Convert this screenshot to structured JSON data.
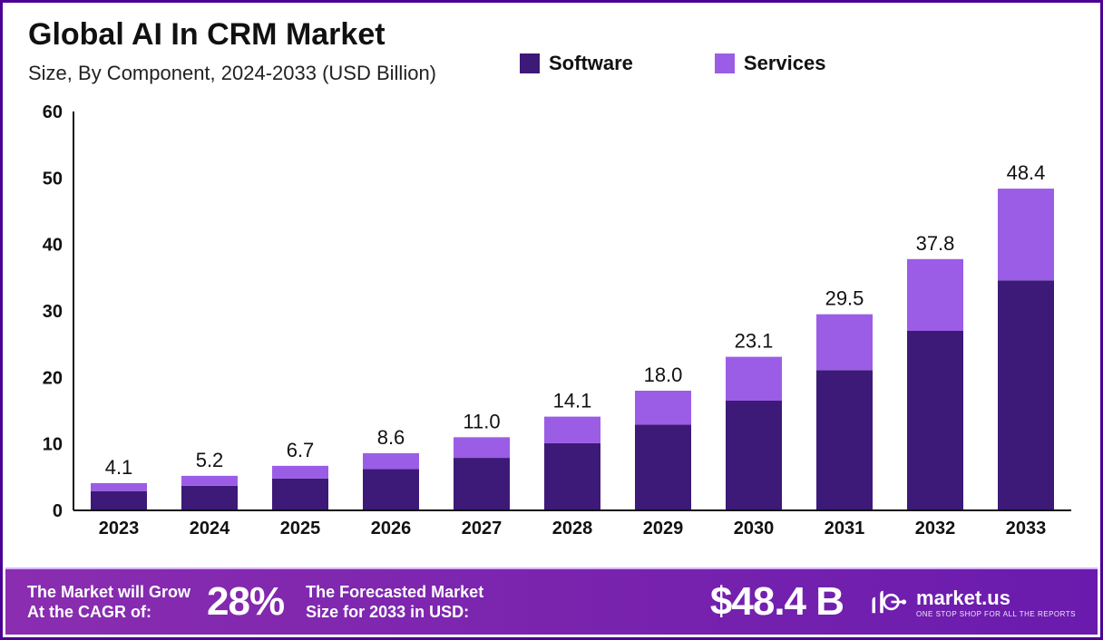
{
  "header": {
    "title": "Global AI In CRM Market",
    "subtitle": "Size, By Component, 2024-2033 (USD Billion)"
  },
  "legend": {
    "items": [
      {
        "label": "Software",
        "color": "#3d1a78"
      },
      {
        "label": "Services",
        "color": "#9b5de5"
      }
    ]
  },
  "chart": {
    "type": "stacked-bar",
    "background_color": "#ffffff",
    "ylim": [
      0,
      60
    ],
    "ytick_step": 10,
    "bar_width_ratio": 0.62,
    "axis_color": "#111111",
    "axis_width": 2,
    "label_fontsize": 20,
    "datalabel_fontsize": 22,
    "categories": [
      "2023",
      "2024",
      "2025",
      "2026",
      "2027",
      "2028",
      "2029",
      "2030",
      "2031",
      "2032",
      "2033"
    ],
    "series": [
      {
        "name": "Software",
        "color": "#3d1a78",
        "values": [
          2.9,
          3.7,
          4.8,
          6.2,
          7.9,
          10.1,
          12.9,
          16.5,
          21.1,
          27.0,
          34.6
        ]
      },
      {
        "name": "Services",
        "color": "#9b5de5",
        "values": [
          1.2,
          1.5,
          1.9,
          2.4,
          3.1,
          4.0,
          5.1,
          6.6,
          8.4,
          10.8,
          13.8
        ]
      }
    ],
    "totals": [
      "4.1",
      "5.2",
      "6.7",
      "8.6",
      "11.0",
      "14.1",
      "18.0",
      "23.1",
      "29.5",
      "37.8",
      "48.4"
    ]
  },
  "footer": {
    "seg1_line1": "The Market will Grow",
    "seg1_line2": "At the CAGR of:",
    "cagr": "28%",
    "seg2_line1": "The Forecasted Market",
    "seg2_line2": "Size for 2033 in USD:",
    "forecast_value": "$48.4 B",
    "brand_name": "market.us",
    "brand_tag": "ONE STOP SHOP FOR ALL THE REPORTS"
  },
  "colors": {
    "border": "#4b0094",
    "footer_grad_from": "#8a2db0",
    "footer_grad_to": "#6a1bad"
  }
}
